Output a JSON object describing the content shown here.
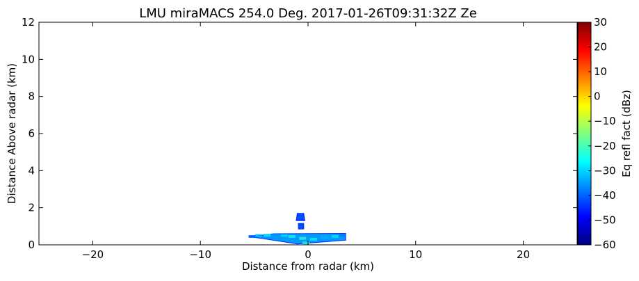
{
  "chart_data": {
    "type": "heatmap",
    "title": "LMU miraMACS 254.0 Deg. 2017-01-26T09:31:32Z  Ze",
    "xlabel": "Distance from radar (km)",
    "ylabel": "Distance Above radar  (km)",
    "xlim": [
      -25,
      25
    ],
    "ylim": [
      0,
      12
    ],
    "xticks": [
      -20,
      -10,
      0,
      10,
      20
    ],
    "xtick_labels": [
      "−20",
      "−10",
      "0",
      "10",
      "20"
    ],
    "yticks": [
      0,
      2,
      4,
      6,
      8,
      10,
      12
    ],
    "ytick_labels": [
      "0",
      "2",
      "4",
      "6",
      "8",
      "10",
      "12"
    ],
    "grid": false,
    "colorbar": {
      "label": "Eq refl fact (dBz)",
      "colormap": "jet",
      "range": [
        -60,
        30
      ],
      "ticks": [
        -60,
        -50,
        -40,
        -30,
        -20,
        -10,
        0,
        10,
        20,
        30
      ],
      "tick_labels": [
        "−60",
        "−50",
        "−40",
        "−30",
        "−20",
        "−10",
        "0",
        "10",
        "20",
        "30"
      ],
      "colors": [
        "#00007f",
        "#0000ff",
        "#007fff",
        "#00ffff",
        "#7fff7f",
        "#ffff00",
        "#ff7f00",
        "#ff0000",
        "#7f0000"
      ]
    },
    "echo_regions": [
      {
        "x": [
          -5.5,
          -3.0,
          3.5,
          3.5,
          -1.0,
          -5.5
        ],
        "y": [
          0.45,
          0.6,
          0.62,
          0.25,
          0.05,
          0.45
        ],
        "dbz_range": [
          -45,
          -25
        ],
        "main_dbz": -35
      },
      {
        "x": [
          -1.0,
          -0.4,
          -0.3,
          -1.1
        ],
        "y": [
          1.7,
          1.7,
          1.3,
          1.3
        ],
        "dbz_range": [
          -45,
          -40
        ],
        "main_dbz": -42
      },
      {
        "x": [
          -0.9,
          -0.4,
          -0.4,
          -0.9
        ],
        "y": [
          1.15,
          1.15,
          0.85,
          0.85
        ],
        "dbz_range": [
          -45,
          -40
        ],
        "main_dbz": -42
      }
    ],
    "echo_cells": [
      {
        "x": -5.2,
        "y": 0.45,
        "dbz": -40
      },
      {
        "x": -4.6,
        "y": 0.5,
        "dbz": -32
      },
      {
        "x": -3.8,
        "y": 0.52,
        "dbz": -28
      },
      {
        "x": -3.0,
        "y": 0.55,
        "dbz": -36
      },
      {
        "x": -2.2,
        "y": 0.5,
        "dbz": -30
      },
      {
        "x": -1.5,
        "y": 0.45,
        "dbz": -26
      },
      {
        "x": -0.5,
        "y": 0.35,
        "dbz": -24
      },
      {
        "x": 0.5,
        "y": 0.3,
        "dbz": -27
      },
      {
        "x": 1.5,
        "y": 0.4,
        "dbz": -33
      },
      {
        "x": 2.5,
        "y": 0.45,
        "dbz": -29
      },
      {
        "x": 3.2,
        "y": 0.5,
        "dbz": -38
      },
      {
        "x": -0.2,
        "y": 0.1,
        "dbz": -25
      }
    ]
  }
}
